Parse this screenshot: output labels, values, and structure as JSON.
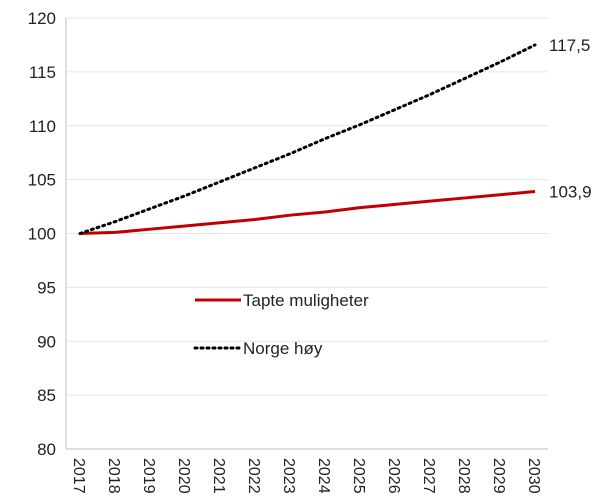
{
  "chart_data": {
    "type": "line",
    "x": [
      "2017",
      "2018",
      "2019",
      "2020",
      "2021",
      "2022",
      "2023",
      "2024",
      "2025",
      "2026",
      "2027",
      "2028",
      "2029",
      "2030"
    ],
    "ylim": [
      80,
      120
    ],
    "yticks": [
      80,
      85,
      90,
      95,
      100,
      105,
      110,
      115,
      120
    ],
    "grid": "horizontal",
    "legend_placement": "center-left inside plot",
    "series": [
      {
        "name": "Tapte muligheter",
        "color": "#c00000",
        "style": "solid",
        "values": [
          100.0,
          100.1,
          100.4,
          100.7,
          101.0,
          101.3,
          101.7,
          102.0,
          102.4,
          102.7,
          103.0,
          103.3,
          103.6,
          103.9
        ],
        "end_label": "103,9"
      },
      {
        "name": "Norge høy",
        "color": "#000000",
        "style": "dotted",
        "values": [
          100.0,
          101.1,
          102.3,
          103.5,
          104.8,
          106.1,
          107.4,
          108.8,
          110.1,
          111.5,
          112.9,
          114.4,
          115.9,
          117.5
        ],
        "end_label": "117,5"
      }
    ]
  }
}
